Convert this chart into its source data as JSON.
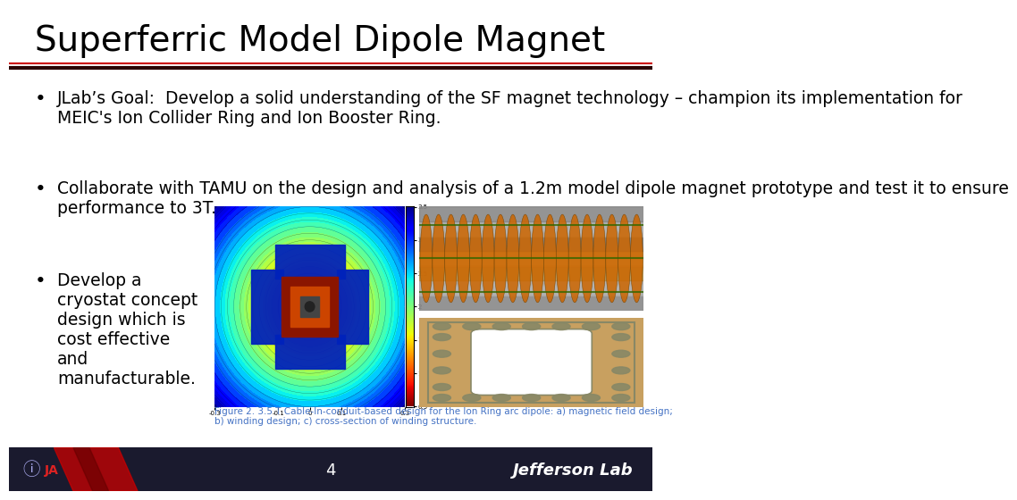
{
  "title": "Superferric Model Dipole Magnet",
  "title_fontsize": 28,
  "title_color": "#000000",
  "bg_color": "#ffffff",
  "footer_bg_color": "#1a1a2e",
  "footer_text": "4",
  "footer_text_color": "#ffffff",
  "jlab_text": "Jefferson Lab",
  "jlab_color": "#ffffff",
  "header_line_color": "#cc0000",
  "bullet1": "JLab’s Goal:  Develop a solid understanding of the SF magnet technology – champion its implementation for\nMEIC's Ion Collider Ring and Ion Booster Ring.",
  "bullet2": "Collaborate with TAMU on the design and analysis of a 1.2m model dipole magnet prototype and test it to ensure\nperformance to 3T.",
  "bullet3": "Develop a\ncryostat concept\ndesign which is\ncost effective\nand\nmanufacturable.",
  "bullet_fontsize": 13.5,
  "caption": "Figure 2. 3.5 T Cable-In-conduit-based design for the Ion Ring arc dipole: a) magnetic field design;\nb) winding design; c) cross-section of winding structure.",
  "caption_color": "#4472c4",
  "caption_fontsize": 7.5
}
